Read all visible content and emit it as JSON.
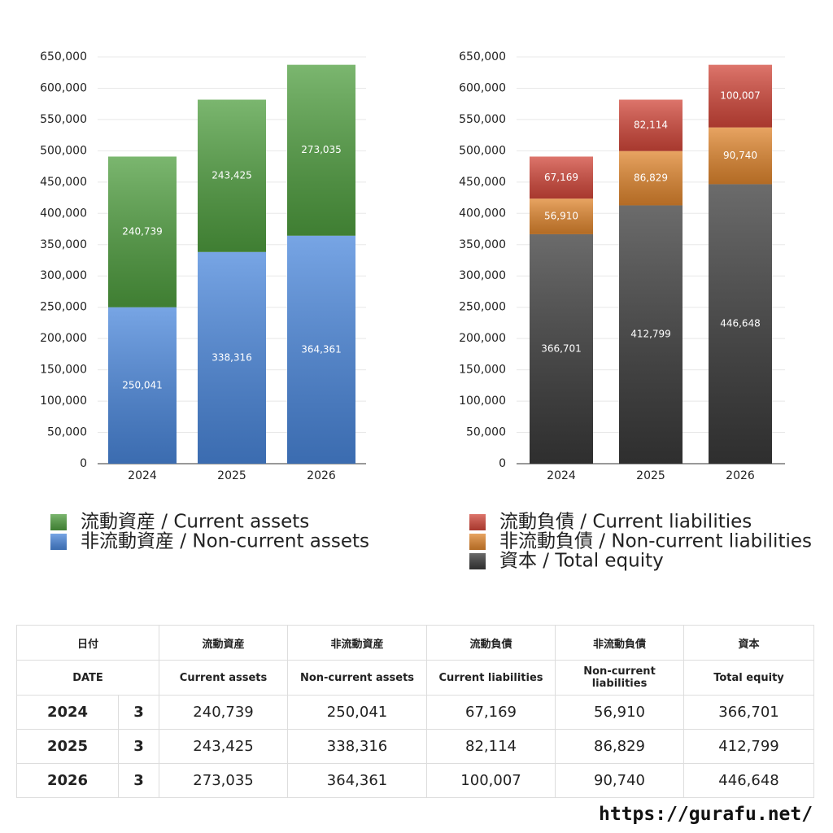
{
  "chart_data": [
    {
      "type": "stacked_bar",
      "categories": [
        "2024",
        "2025",
        "2026"
      ],
      "series": [
        {
          "name": "非流動資産 / Non-current assets",
          "color": "#4a87dc",
          "values": [
            250041,
            338316,
            364361
          ],
          "value_labels": [
            "250,041",
            "338,316",
            "364,361"
          ]
        },
        {
          "name": "流動資産 / Current assets",
          "color": "#4f9e3f",
          "values": [
            240739,
            243425,
            273035
          ],
          "value_labels": [
            "240,739",
            "243,425",
            "273,035"
          ]
        }
      ],
      "ylim": [
        0,
        650000
      ],
      "yticks": [
        0,
        {
          "value": 50000,
          "label": "50,000"
        },
        {
          "value": 100000,
          "label": "100,000"
        },
        {
          "value": 150000,
          "label": "150,000"
        },
        {
          "value": 200000,
          "label": "200,000"
        },
        {
          "value": 250000,
          "label": "250,000"
        },
        {
          "value": 300000,
          "label": "300,000"
        },
        {
          "value": 350000,
          "label": "350,000"
        },
        {
          "value": 400000,
          "label": "400,000"
        },
        {
          "value": 450000,
          "label": "450,000"
        },
        {
          "value": 500000,
          "label": "500,000"
        },
        {
          "value": 550000,
          "label": "550,000"
        },
        {
          "value": 600000,
          "label": "600,000"
        },
        {
          "value": 650000,
          "label": "650,000"
        }
      ],
      "grid": true
    },
    {
      "type": "stacked_bar",
      "categories": [
        "2024",
        "2025",
        "2026"
      ],
      "series": [
        {
          "name": "資本 / Total equity",
          "color": "#3a3a3a",
          "values": [
            366701,
            412799,
            446648
          ],
          "value_labels": [
            "366,701",
            "412,799",
            "446,648"
          ]
        },
        {
          "name": "非流動負債 / Non-current liabilities",
          "color": "#e0862e",
          "values": [
            56910,
            86829,
            90740
          ],
          "value_labels": [
            "56,910",
            "86,829",
            "90,740"
          ]
        },
        {
          "name": "流動負債 / Current liabilities",
          "color": "#d2473a",
          "values": [
            67169,
            82114,
            100007
          ],
          "value_labels": [
            "67,169",
            "82,114",
            "100,007"
          ]
        }
      ],
      "ylim": [
        0,
        650000
      ],
      "yticks": [
        0,
        {
          "value": 50000,
          "label": "50,000"
        },
        {
          "value": 100000,
          "label": "100,000"
        },
        {
          "value": 150000,
          "label": "150,000"
        },
        {
          "value": 200000,
          "label": "200,000"
        },
        {
          "value": 250000,
          "label": "250,000"
        },
        {
          "value": 300000,
          "label": "300,000"
        },
        {
          "value": 350000,
          "label": "350,000"
        },
        {
          "value": 400000,
          "label": "400,000"
        },
        {
          "value": 450000,
          "label": "450,000"
        },
        {
          "value": 500000,
          "label": "500,000"
        },
        {
          "value": 550000,
          "label": "550,000"
        },
        {
          "value": 600000,
          "label": "600,000"
        },
        {
          "value": 650000,
          "label": "650,000"
        }
      ],
      "grid": true
    }
  ],
  "table": {
    "header": [
      [
        "日付",
        "流動資産",
        "非流動資産",
        "流動負債",
        "非流動負債",
        "資本"
      ],
      [
        "DATE",
        "Current assets",
        "Non-current assets",
        "Current liabilities",
        "Non-current liabilities",
        "Total equity"
      ]
    ],
    "rows": [
      [
        "2024",
        "3",
        "240,739",
        "250,041",
        "67,169",
        "56,910",
        "366,701"
      ],
      [
        "2025",
        "3",
        "243,425",
        "338,316",
        "82,114",
        "86,829",
        "412,799"
      ],
      [
        "2026",
        "3",
        "273,035",
        "364,361",
        "100,007",
        "90,740",
        "446,648"
      ]
    ]
  },
  "footer": "https://gurafu.net/"
}
